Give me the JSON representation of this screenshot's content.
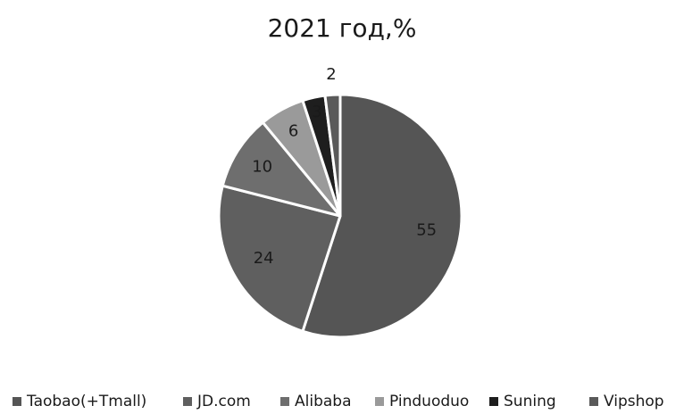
{
  "chart_data": {
    "type": "pie",
    "title": "2021 год,%",
    "categories": [
      "Taobao(+Tmall)",
      "JD.com",
      "Alibaba",
      "Pinduoduo",
      "Suning",
      "Vipshop"
    ],
    "values": [
      55,
      24,
      10,
      6,
      3,
      2
    ],
    "colors": [
      "#555555",
      "#5f5f5f",
      "#6e6e6e",
      "#9a9a9a",
      "#1e1e1e",
      "#5a5a5a"
    ],
    "legend_position": "bottom"
  }
}
